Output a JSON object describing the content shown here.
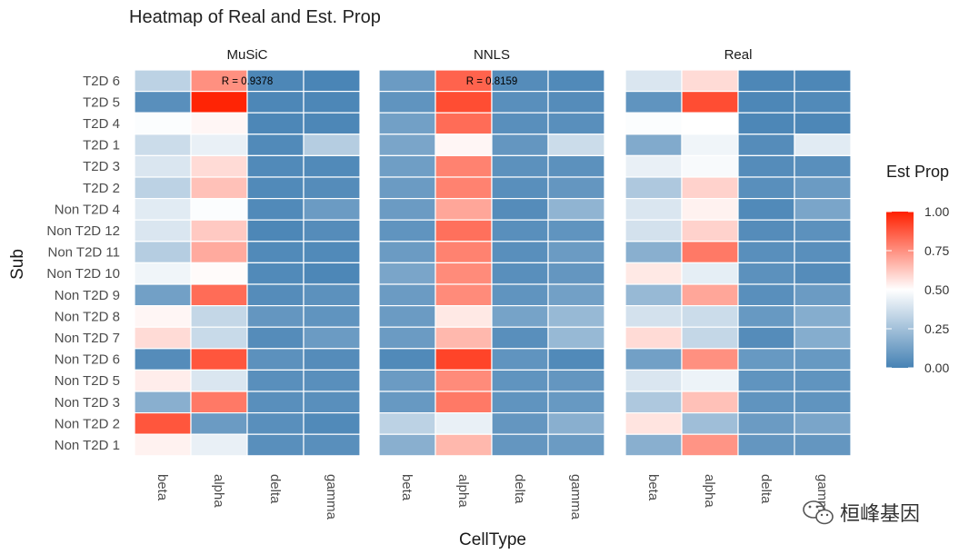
{
  "chart_data": {
    "type": "heatmap",
    "title": "Heatmap of Real and Est. Prop",
    "xlabel": "CellType",
    "ylabel": "Sub",
    "x_categories": [
      "beta",
      "alpha",
      "delta",
      "gamma"
    ],
    "y_categories": [
      "T2D 6",
      "T2D 5",
      "T2D 4",
      "T2D 1",
      "T2D 3",
      "T2D 2",
      "Non T2D 4",
      "Non T2D 12",
      "Non T2D 11",
      "Non T2D 10",
      "Non T2D 9",
      "Non T2D 8",
      "Non T2D 7",
      "Non T2D 6",
      "Non T2D 5",
      "Non T2D 3",
      "Non T2D 2",
      "Non T2D 1"
    ],
    "panels": [
      {
        "name": "MuSiC",
        "annotation": "R = 0.9378",
        "values": [
          [
            0.32,
            0.75,
            0.02,
            0.01
          ],
          [
            0.05,
            0.99,
            0.02,
            0.02
          ],
          [
            0.49,
            0.52,
            0.02,
            0.02
          ],
          [
            0.36,
            0.44,
            0.03,
            0.3
          ],
          [
            0.4,
            0.58,
            0.03,
            0.03
          ],
          [
            0.32,
            0.64,
            0.03,
            0.04
          ],
          [
            0.42,
            0.49,
            0.03,
            0.1
          ],
          [
            0.4,
            0.62,
            0.02,
            0.04
          ],
          [
            0.3,
            0.69,
            0.03,
            0.03
          ],
          [
            0.46,
            0.51,
            0.03,
            0.02
          ],
          [
            0.12,
            0.83,
            0.04,
            0.06
          ],
          [
            0.52,
            0.34,
            0.08,
            0.07
          ],
          [
            0.58,
            0.35,
            0.04,
            0.1
          ],
          [
            0.04,
            0.88,
            0.06,
            0.04
          ],
          [
            0.54,
            0.4,
            0.05,
            0.05
          ],
          [
            0.18,
            0.8,
            0.05,
            0.05
          ],
          [
            0.88,
            0.1,
            0.05,
            0.03
          ],
          [
            0.53,
            0.44,
            0.05,
            0.05
          ]
        ]
      },
      {
        "name": "NNLS",
        "annotation": "R = 0.8159",
        "values": [
          [
            0.1,
            0.85,
            0.04,
            0.03
          ],
          [
            0.07,
            0.9,
            0.05,
            0.04
          ],
          [
            0.12,
            0.83,
            0.05,
            0.05
          ],
          [
            0.14,
            0.52,
            0.08,
            0.36
          ],
          [
            0.11,
            0.78,
            0.06,
            0.06
          ],
          [
            0.1,
            0.78,
            0.05,
            0.08
          ],
          [
            0.1,
            0.7,
            0.04,
            0.2
          ],
          [
            0.07,
            0.82,
            0.05,
            0.07
          ],
          [
            0.1,
            0.78,
            0.05,
            0.1
          ],
          [
            0.14,
            0.76,
            0.05,
            0.08
          ],
          [
            0.1,
            0.76,
            0.07,
            0.12
          ],
          [
            0.1,
            0.55,
            0.13,
            0.22
          ],
          [
            0.1,
            0.66,
            0.05,
            0.22
          ],
          [
            0.03,
            0.92,
            0.07,
            0.03
          ],
          [
            0.1,
            0.76,
            0.07,
            0.08
          ],
          [
            0.09,
            0.8,
            0.07,
            0.09
          ],
          [
            0.32,
            0.44,
            0.08,
            0.18
          ],
          [
            0.18,
            0.66,
            0.08,
            0.1
          ]
        ]
      },
      {
        "name": "Real",
        "annotation": "",
        "values": [
          [
            0.4,
            0.58,
            0.02,
            0.02
          ],
          [
            0.07,
            0.9,
            0.02,
            0.03
          ],
          [
            0.49,
            0.5,
            0.02,
            0.02
          ],
          [
            0.16,
            0.46,
            0.04,
            0.42
          ],
          [
            0.44,
            0.48,
            0.04,
            0.05
          ],
          [
            0.28,
            0.6,
            0.05,
            0.1
          ],
          [
            0.4,
            0.53,
            0.03,
            0.14
          ],
          [
            0.38,
            0.6,
            0.04,
            0.06
          ],
          [
            0.18,
            0.8,
            0.05,
            0.05
          ],
          [
            0.55,
            0.43,
            0.06,
            0.04
          ],
          [
            0.22,
            0.7,
            0.05,
            0.1
          ],
          [
            0.38,
            0.36,
            0.09,
            0.17
          ],
          [
            0.58,
            0.34,
            0.04,
            0.17
          ],
          [
            0.12,
            0.75,
            0.09,
            0.09
          ],
          [
            0.4,
            0.45,
            0.07,
            0.07
          ],
          [
            0.28,
            0.64,
            0.07,
            0.07
          ],
          [
            0.56,
            0.24,
            0.1,
            0.14
          ],
          [
            0.18,
            0.74,
            0.08,
            0.08
          ]
        ]
      }
    ],
    "legend": {
      "title": "Est Prop",
      "position": "right",
      "ticks": [
        "1.00",
        "0.75",
        "0.50",
        "0.25",
        "0.00"
      ],
      "low_color": "#4682b4",
      "mid_color": "#ffffff",
      "high_color": "#ff2000"
    }
  },
  "watermark": {
    "text": "桓峰基因",
    "icon": "wechat-icon"
  }
}
